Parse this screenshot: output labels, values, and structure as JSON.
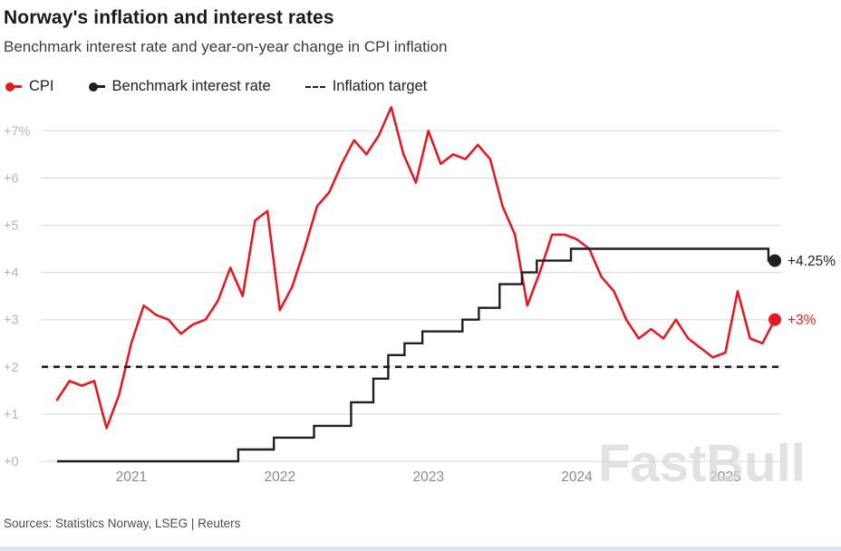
{
  "header": {
    "title": "Norway's inflation and interest rates",
    "subtitle": "Benchmark interest rate and year-on-year change in CPI inflation"
  },
  "legend": [
    {
      "label": "CPI",
      "color": "#e11b22",
      "marker": "dot-line"
    },
    {
      "label": "Benchmark interest rate",
      "color": "#1f1f1f",
      "marker": "dot-line"
    },
    {
      "label": "Inflation target",
      "color": "#1f1f1f",
      "marker": "dashed"
    }
  ],
  "chart_data": {
    "type": "line",
    "title": "Norway's inflation and interest rates",
    "subtitle": "Benchmark interest rate and year-on-year change in CPI inflation",
    "xlim": [
      2020.5,
      2025.3333
    ],
    "ylim": [
      0,
      7.75
    ],
    "grid": true,
    "x_ticks": [
      {
        "value": 2021,
        "label": "2021"
      },
      {
        "value": 2022,
        "label": "2022"
      },
      {
        "value": 2023,
        "label": "2023"
      },
      {
        "value": 2024,
        "label": "2024"
      },
      {
        "value": 2025,
        "label": "2025"
      }
    ],
    "y_ticks": [
      {
        "value": 7,
        "label": "+7%"
      },
      {
        "value": 6,
        "label": "+6"
      },
      {
        "value": 5,
        "label": "+5"
      },
      {
        "value": 4,
        "label": "+4"
      },
      {
        "value": 3,
        "label": "+3"
      },
      {
        "value": 2,
        "label": "+2"
      },
      {
        "value": 1,
        "label": "+1"
      },
      {
        "value": 0,
        "label": "+0"
      }
    ],
    "series": [
      {
        "name": "CPI",
        "type": "line",
        "color": "#e11b22",
        "start_year": 2020,
        "start_month": 7,
        "unit": "% year-on-year",
        "values": [
          1.3,
          1.7,
          1.6,
          1.7,
          0.7,
          1.4,
          2.5,
          3.3,
          3.1,
          3.0,
          2.7,
          2.9,
          3.0,
          3.4,
          4.1,
          3.5,
          5.1,
          5.3,
          3.2,
          3.7,
          4.5,
          5.4,
          5.7,
          6.3,
          6.8,
          6.5,
          6.9,
          7.5,
          6.5,
          5.9,
          7.0,
          6.3,
          6.5,
          6.4,
          6.7,
          6.4,
          5.4,
          4.8,
          3.3,
          4.0,
          4.8,
          4.8,
          4.7,
          4.5,
          3.9,
          3.6,
          3.0,
          2.6,
          2.8,
          2.6,
          3.0,
          2.6,
          2.4,
          2.2,
          2.3,
          3.6,
          2.6,
          2.5,
          3.0
        ],
        "end_label": "+3%"
      },
      {
        "name": "Benchmark interest rate",
        "type": "step",
        "color": "#1f1f1f",
        "points": [
          [
            2020.5,
            0
          ],
          [
            2021.72,
            0.25
          ],
          [
            2021.96,
            0.5
          ],
          [
            2022.23,
            0.75
          ],
          [
            2022.48,
            1.25
          ],
          [
            2022.63,
            1.75
          ],
          [
            2022.73,
            2.25
          ],
          [
            2022.84,
            2.5
          ],
          [
            2022.96,
            2.75
          ],
          [
            2023.23,
            3.0
          ],
          [
            2023.34,
            3.25
          ],
          [
            2023.48,
            3.75
          ],
          [
            2023.63,
            4.0
          ],
          [
            2023.73,
            4.25
          ],
          [
            2023.96,
            4.5
          ],
          [
            2025.29,
            4.25
          ]
        ],
        "end_label": "+4.25%"
      },
      {
        "name": "Inflation target",
        "type": "hline",
        "style": "dashed",
        "color": "#1a1a1a",
        "value": 2
      }
    ],
    "legend_position": "top-left",
    "colors": {
      "cpi_red": "#e11b22",
      "rate_black": "#1f1f1f",
      "grid_gray": "#d8d8d8"
    }
  },
  "watermark": "FastBull",
  "footer": {
    "sources": "Sources: Statistics Norway, LSEG | Reuters"
  }
}
